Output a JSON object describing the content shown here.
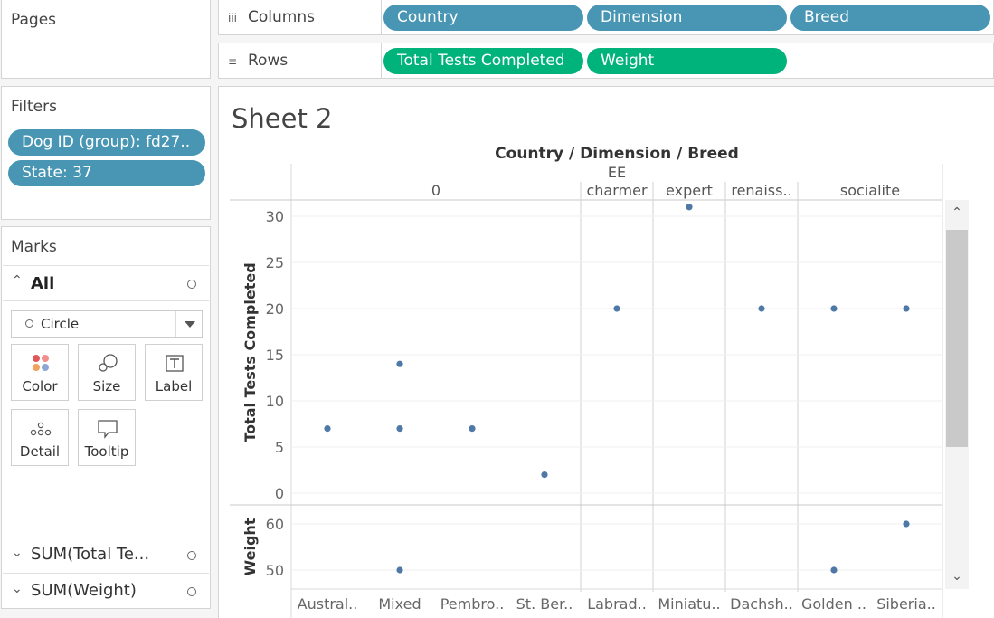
{
  "pages": {
    "title": "Pages"
  },
  "shelves": {
    "columns": {
      "label": "Columns",
      "pills": [
        "Country",
        "Dimension",
        "Breed"
      ]
    },
    "rows": {
      "label": "Rows",
      "pills": [
        "Total Tests Completed",
        "Weight"
      ]
    }
  },
  "filters": {
    "title": "Filters",
    "pills": [
      "Dog ID (group): fd27..",
      "State: 37"
    ]
  },
  "marks": {
    "title": "Marks",
    "all_label": "All",
    "mark_type": "Circle",
    "cards": [
      "Color",
      "Size",
      "Label",
      "Detail",
      "Tooltip"
    ],
    "measures": [
      "SUM(Total Te...",
      "SUM(Weight)"
    ]
  },
  "sheet": {
    "title": "Sheet 2",
    "column_header": "Country / Dimension / Breed"
  },
  "chart_data": {
    "type": "scatter",
    "title": "Sheet 2",
    "column_header": "Country / Dimension / Breed",
    "groups": [
      {
        "label": "0",
        "breeds": [
          "Austral..",
          "Mixed",
          "Pembro..",
          "St. Ber.."
        ]
      },
      {
        "label": "EE\ncharmer",
        "label_lines": [
          "EE",
          "charmer"
        ],
        "breeds": [
          "Labrad.."
        ]
      },
      {
        "label": "expert",
        "breeds": [
          "Miniatu.."
        ]
      },
      {
        "label": "renaiss..",
        "breeds": [
          "Dachsh.."
        ]
      },
      {
        "label": "socialite",
        "breeds": [
          "Golden ..",
          "Siberia.."
        ]
      }
    ],
    "categories": [
      "Austral..",
      "Mixed",
      "Pembro..",
      "St. Ber..",
      "Labrad..",
      "Miniatu..",
      "Dachsh..",
      "Golden ..",
      "Siberia.."
    ],
    "panes": [
      {
        "ylabel": "Total Tests Completed",
        "ylim": [
          0,
          31
        ],
        "ticks": [
          0,
          5,
          10,
          15,
          20,
          25,
          30
        ],
        "points": [
          {
            "category": "Austral..",
            "value": 7
          },
          {
            "category": "Mixed",
            "value": 14
          },
          {
            "category": "Mixed",
            "value": 7
          },
          {
            "category": "Pembro..",
            "value": 7
          },
          {
            "category": "St. Ber..",
            "value": 2
          },
          {
            "category": "Labrad..",
            "value": 20
          },
          {
            "category": "Miniatu..",
            "value": 31
          },
          {
            "category": "Dachsh..",
            "value": 20
          },
          {
            "category": "Golden ..",
            "value": 20
          },
          {
            "category": "Siberia..",
            "value": 20
          }
        ]
      },
      {
        "ylabel": "Weight",
        "ylim": [
          45,
          64
        ],
        "ticks": [
          50,
          60
        ],
        "points": [
          {
            "category": "Mixed",
            "value": 50
          },
          {
            "category": "Golden ..",
            "value": 50
          },
          {
            "category": "Siberia..",
            "value": 60
          }
        ]
      }
    ],
    "grid": true,
    "mark_color": "#4e79a7"
  }
}
